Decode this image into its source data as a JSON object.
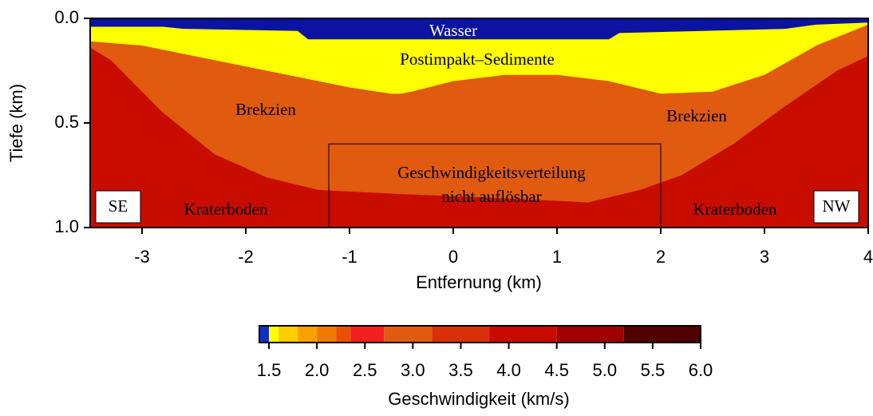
{
  "chart_data": {
    "type": "section",
    "x_label": "Entfernung (km)",
    "y_label": "Tiefe (km)",
    "xlim": [
      -3.5,
      4
    ],
    "ylim": [
      1.0,
      0.0
    ],
    "xticks": [
      -3,
      -2,
      -1,
      0,
      1,
      2,
      3,
      4
    ],
    "yticks": [
      {
        "value": 0,
        "label": "0.0"
      },
      0.5,
      {
        "value": 1,
        "label": "1.0"
      }
    ],
    "background_color": "#c80c00",
    "layers": [
      {
        "color": "#e05a10",
        "x": [
          -3.5,
          -3.3,
          -2.8,
          -2.3,
          -1.8,
          -1.3,
          -0.5,
          0.5,
          1.3,
          1.8,
          2.2,
          2.7,
          3.2,
          3.7,
          4.0
        ],
        "depth": [
          0.14,
          0.2,
          0.45,
          0.65,
          0.76,
          0.82,
          0.84,
          0.86,
          0.88,
          0.82,
          0.75,
          0.6,
          0.42,
          0.25,
          0.18
        ]
      },
      {
        "color": "#ffff00",
        "x": [
          -3.5,
          -3,
          -2.3,
          -1.6,
          -1,
          -0.6,
          -0.5,
          -0.4,
          0,
          0.5,
          1,
          1.5,
          2,
          2.5,
          3,
          3.5,
          4
        ],
        "depth": [
          0.11,
          0.13,
          0.2,
          0.27,
          0.33,
          0.36,
          0.36,
          0.35,
          0.3,
          0.27,
          0.27,
          0.3,
          0.36,
          0.35,
          0.27,
          0.13,
          0.03
        ]
      },
      {
        "color": "#0a14a0",
        "x": [
          -3.5,
          -2.8,
          -2.6,
          -1.5,
          -1.4,
          1.5,
          1.6,
          3.2,
          3.5,
          4
        ],
        "depth": [
          0.04,
          0.04,
          0.05,
          0.06,
          0.1,
          0.1,
          0.07,
          0.05,
          0.03,
          0.02
        ]
      }
    ],
    "box": {
      "x": [
        -1.2,
        2.0
      ],
      "depth": [
        0.6,
        1.0
      ]
    },
    "annotations": [
      "Wasser",
      "Postimpakt–Sedimente",
      "Brekzien",
      "Brekzien",
      "Geschwindigkeitsverteilung",
      "nicht auflösbar",
      "Kraterboden",
      "Kraterboden",
      "SE",
      "NW"
    ],
    "colorbar": {
      "label": "Geschwindigkeit (km/s)",
      "bounds": [
        1.4,
        1.5,
        1.6,
        1.8,
        2.0,
        2.2,
        2.35,
        2.7,
        3.2,
        3.8,
        4.5,
        5.2,
        6.0
      ],
      "colors": [
        "#1030c0",
        "#ffff00",
        "#ffcc00",
        "#f7a000",
        "#f07a00",
        "#e85000",
        "#f42020",
        "#e05a10",
        "#d83008",
        "#c80a00",
        "#a00000",
        "#500000"
      ],
      "ticks": [
        1.5,
        {
          "value": 2,
          "label": "2.0"
        },
        2.5,
        {
          "value": 3,
          "label": "3.0"
        },
        3.5,
        {
          "value": 4,
          "label": "4.0"
        },
        4.5,
        {
          "value": 5,
          "label": "5.0"
        },
        5.5,
        {
          "value": 6,
          "label": "6.0"
        }
      ]
    }
  }
}
